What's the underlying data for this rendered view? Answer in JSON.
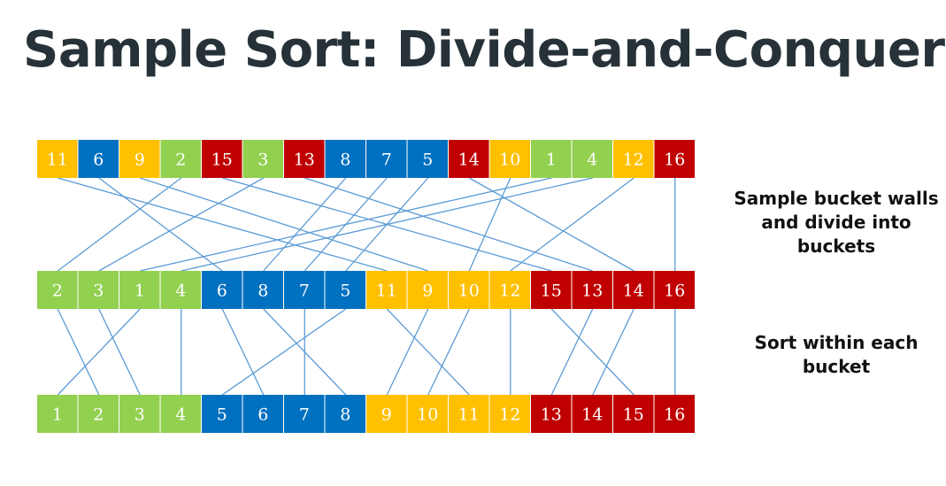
{
  "title": "Sample Sort: Divide-and-Conquer",
  "notes": {
    "partition": "Sample bucket walls and divide into buckets",
    "sort": "Sort within each bucket"
  },
  "colors": {
    "green": "#92d050",
    "blue": "#0070c0",
    "yellow": "#ffc000",
    "red": "#c00000",
    "line": "#5b9bd5"
  },
  "rows": [
    [
      {
        "v": 11,
        "c": "yellow"
      },
      {
        "v": 6,
        "c": "blue"
      },
      {
        "v": 9,
        "c": "yellow"
      },
      {
        "v": 2,
        "c": "green"
      },
      {
        "v": 15,
        "c": "red"
      },
      {
        "v": 3,
        "c": "green"
      },
      {
        "v": 13,
        "c": "red"
      },
      {
        "v": 8,
        "c": "blue"
      },
      {
        "v": 7,
        "c": "blue"
      },
      {
        "v": 5,
        "c": "blue"
      },
      {
        "v": 14,
        "c": "red"
      },
      {
        "v": 10,
        "c": "yellow"
      },
      {
        "v": 1,
        "c": "green"
      },
      {
        "v": 4,
        "c": "green"
      },
      {
        "v": 12,
        "c": "yellow"
      },
      {
        "v": 16,
        "c": "red"
      }
    ],
    [
      {
        "v": 2,
        "c": "green"
      },
      {
        "v": 3,
        "c": "green"
      },
      {
        "v": 1,
        "c": "green"
      },
      {
        "v": 4,
        "c": "green"
      },
      {
        "v": 6,
        "c": "blue"
      },
      {
        "v": 8,
        "c": "blue"
      },
      {
        "v": 7,
        "c": "blue"
      },
      {
        "v": 5,
        "c": "blue"
      },
      {
        "v": 11,
        "c": "yellow"
      },
      {
        "v": 9,
        "c": "yellow"
      },
      {
        "v": 10,
        "c": "yellow"
      },
      {
        "v": 12,
        "c": "yellow"
      },
      {
        "v": 15,
        "c": "red"
      },
      {
        "v": 13,
        "c": "red"
      },
      {
        "v": 14,
        "c": "red"
      },
      {
        "v": 16,
        "c": "red"
      }
    ],
    [
      {
        "v": 1,
        "c": "green"
      },
      {
        "v": 2,
        "c": "green"
      },
      {
        "v": 3,
        "c": "green"
      },
      {
        "v": 4,
        "c": "green"
      },
      {
        "v": 5,
        "c": "blue"
      },
      {
        "v": 6,
        "c": "blue"
      },
      {
        "v": 7,
        "c": "blue"
      },
      {
        "v": 8,
        "c": "blue"
      },
      {
        "v": 9,
        "c": "yellow"
      },
      {
        "v": 10,
        "c": "yellow"
      },
      {
        "v": 11,
        "c": "yellow"
      },
      {
        "v": 12,
        "c": "yellow"
      },
      {
        "v": 13,
        "c": "red"
      },
      {
        "v": 14,
        "c": "red"
      },
      {
        "v": 15,
        "c": "red"
      },
      {
        "v": 16,
        "c": "red"
      }
    ]
  ]
}
